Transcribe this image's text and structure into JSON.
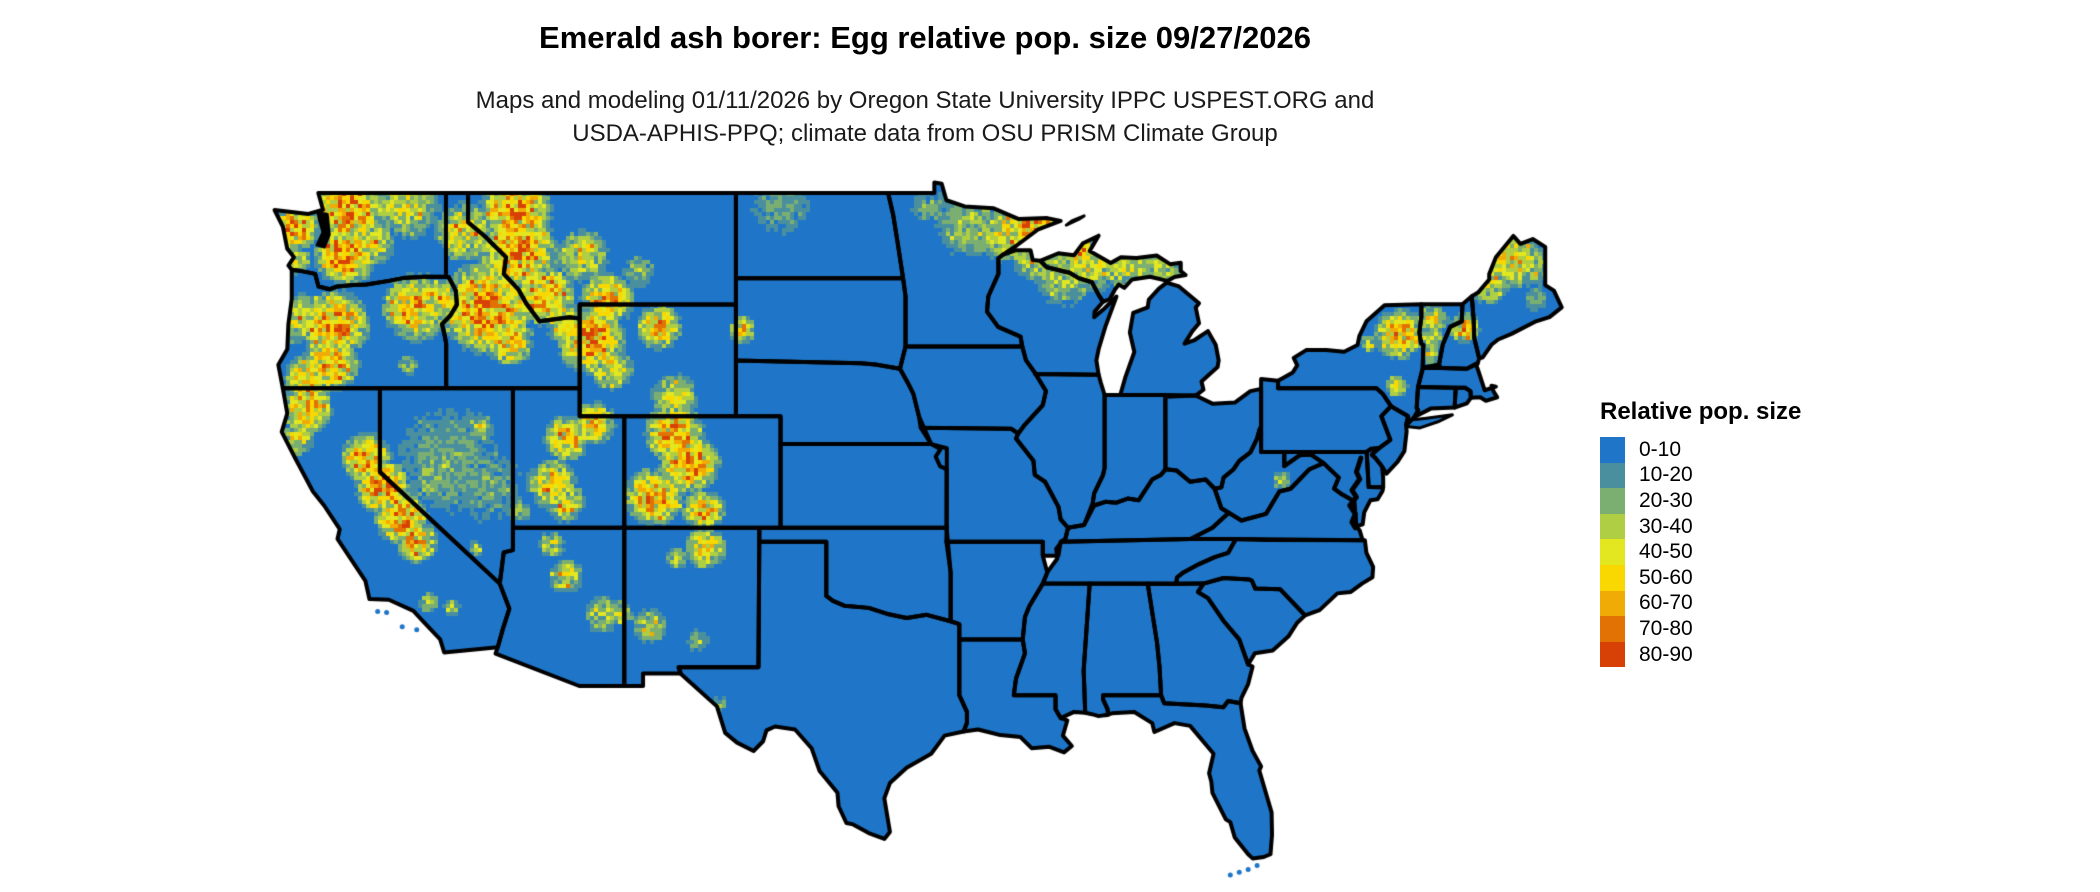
{
  "header": {
    "title": "Emerald ash borer: Egg relative pop. size 09/27/2026",
    "subtitle_line1": "Maps and modeling 01/11/2026 by Oregon State University IPPC USPEST.ORG and",
    "subtitle_line2": "USDA-APHIS-PPQ; climate data from OSU PRISM Climate Group"
  },
  "legend": {
    "title": "Relative pop. size",
    "items": [
      {
        "label": "0-10",
        "color": "#1F76C8"
      },
      {
        "label": "10-20",
        "color": "#4A8F9E"
      },
      {
        "label": "20-30",
        "color": "#7BAF72"
      },
      {
        "label": "30-40",
        "color": "#AFCE43"
      },
      {
        "label": "40-50",
        "color": "#E2E720"
      },
      {
        "label": "50-60",
        "color": "#F8D800"
      },
      {
        "label": "60-70",
        "color": "#F0AB06"
      },
      {
        "label": "70-80",
        "color": "#E37204"
      },
      {
        "label": "80-90",
        "color": "#D84106"
      }
    ]
  },
  "map": {
    "base_color": "#1F76C8",
    "border_color": "#000000",
    "water_color": "#FFFFFF",
    "background_color": "#FFFFFF"
  }
}
